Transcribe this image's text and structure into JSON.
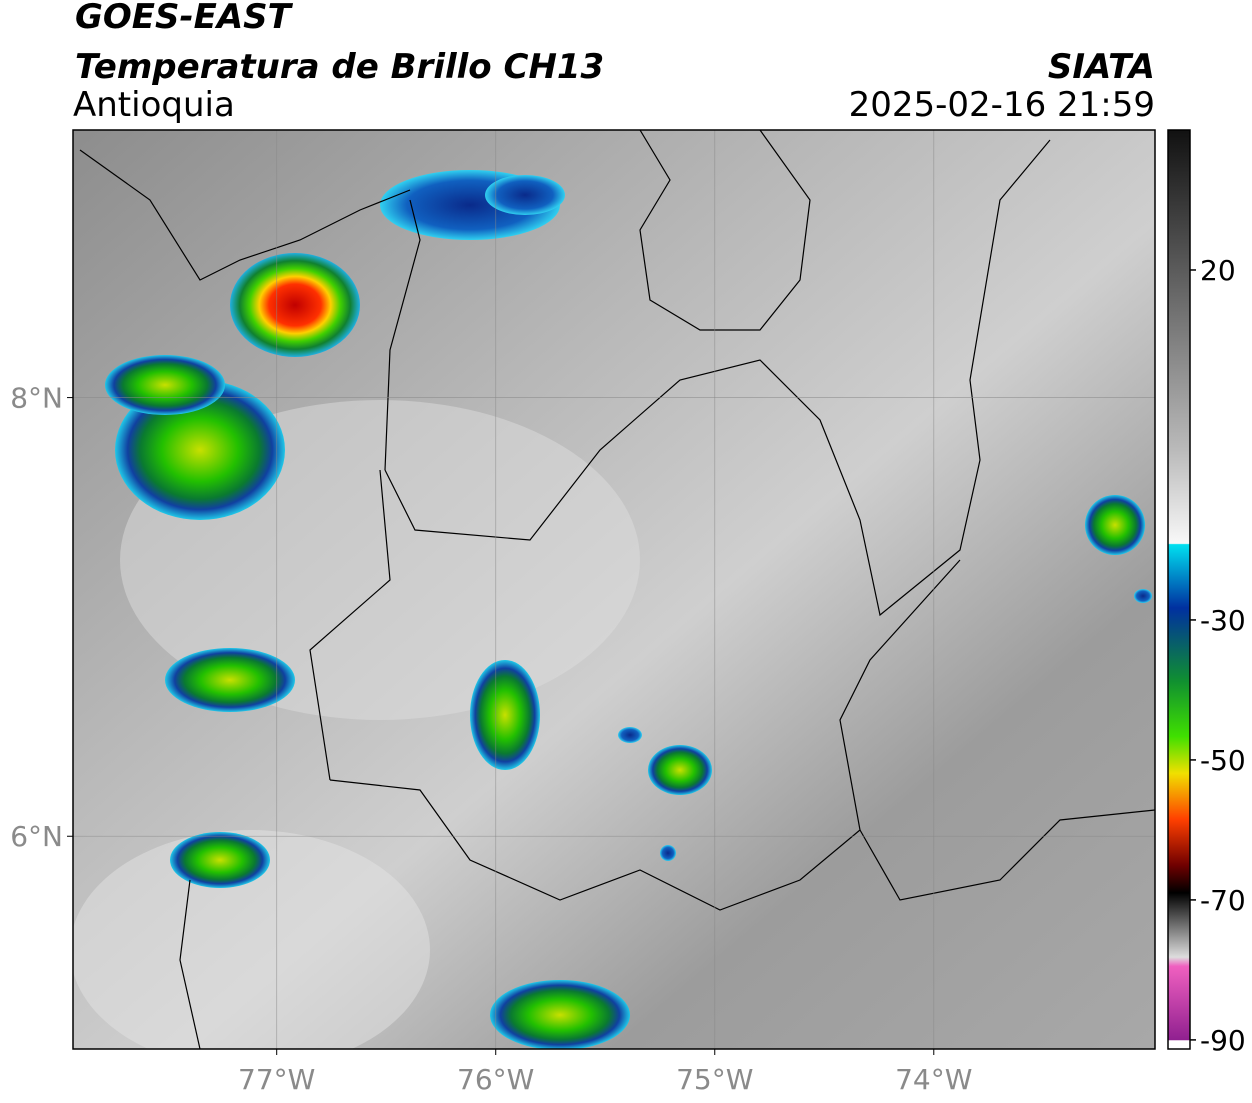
{
  "header": {
    "title": "GOES-EAST",
    "subtitle": "Temperatura de Brillo CH13",
    "region": "Antioquia",
    "source": "SIATA",
    "datetime": "2025-02-16 21:59"
  },
  "map": {
    "xlim": [
      -77.93,
      -72.99
    ],
    "ylim": [
      5.03,
      9.22
    ],
    "xticks": [
      {
        "value": -77,
        "label": "77°W"
      },
      {
        "value": -76,
        "label": "76°W"
      },
      {
        "value": -75,
        "label": "75°W"
      },
      {
        "value": -74,
        "label": "74°W"
      }
    ],
    "yticks": [
      {
        "value": 6,
        "label": "6°N"
      },
      {
        "value": 8,
        "label": "8°N"
      }
    ]
  },
  "colorbar": {
    "lim": [
      -91.3,
      40
    ],
    "ticks": [
      20,
      -30,
      -50,
      -70,
      -90
    ]
  }
}
